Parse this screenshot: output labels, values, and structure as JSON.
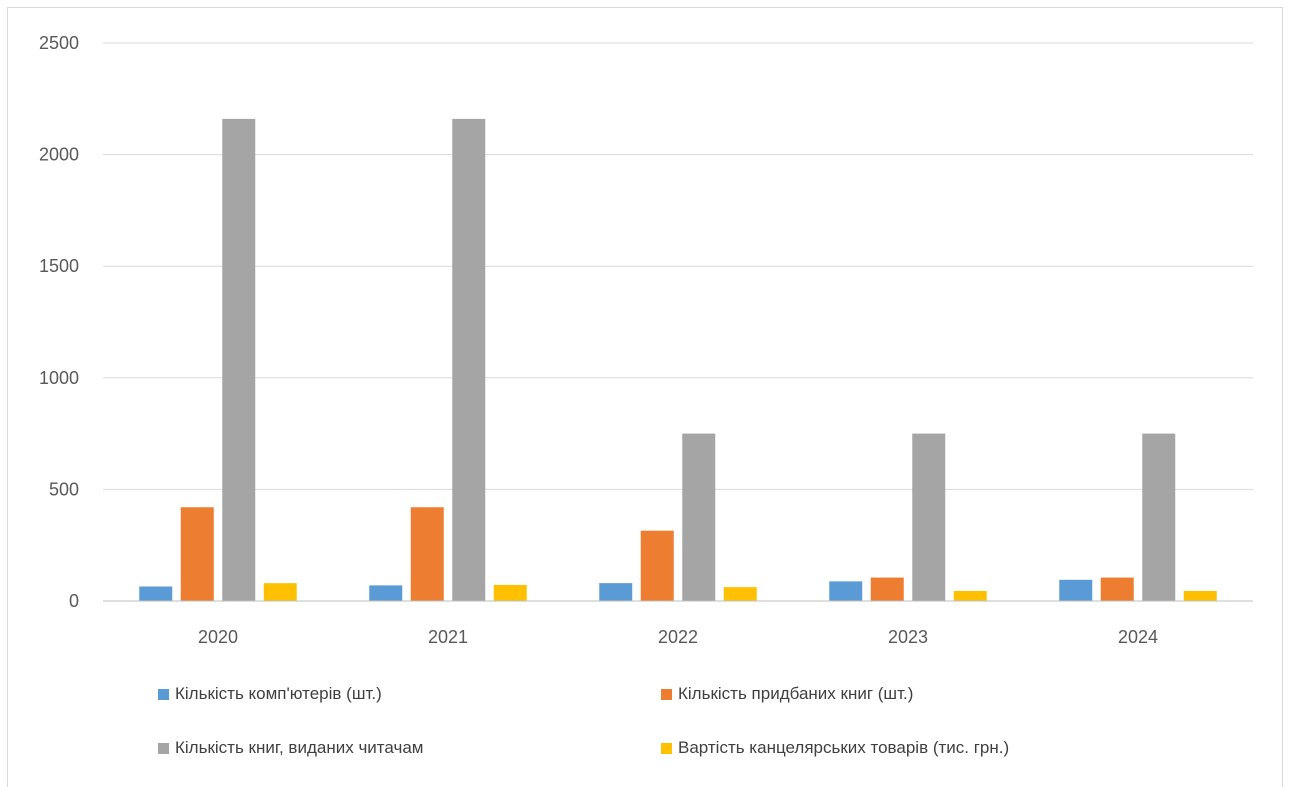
{
  "chart_data": {
    "type": "bar",
    "title": "",
    "xlabel": "",
    "ylabel": "",
    "categories": [
      "2020",
      "2021",
      "2022",
      "2023",
      "2024"
    ],
    "ylim": [
      0,
      2500
    ],
    "yticks": [
      "0",
      "500",
      "1000",
      "1500",
      "2000",
      "2500"
    ],
    "grid": true,
    "legend_position": "bottom",
    "series": [
      {
        "name": "Кількість комп'ютерів (шт.)",
        "color": "#5b9bd5",
        "values": [
          65,
          70,
          80,
          88,
          95
        ]
      },
      {
        "name": "Кількість придбаних книг (шт.)",
        "color": "#ed7d31",
        "values": [
          420,
          420,
          315,
          105,
          105
        ]
      },
      {
        "name": "Кількість книг, виданих читачам",
        "color": "#a5a5a5",
        "values": [
          2160,
          2160,
          750,
          750,
          750
        ]
      },
      {
        "name": "Вартість канцелярських товарів (тис. грн.)",
        "color": "#ffc000",
        "values": [
          80,
          72,
          62,
          45,
          45
        ]
      }
    ]
  }
}
